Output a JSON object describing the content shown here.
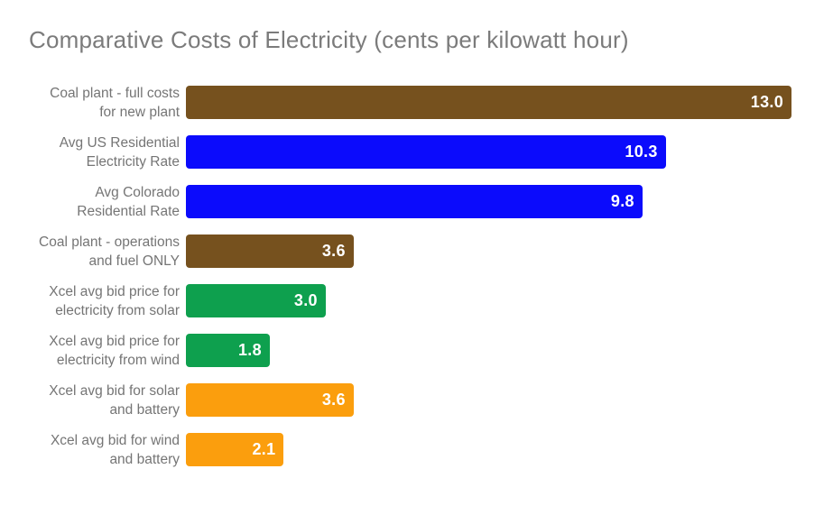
{
  "chart_data": {
    "type": "bar",
    "orientation": "horizontal",
    "title": "Comparative Costs of Electricity (cents per kilowatt hour)",
    "xlabel": "",
    "ylabel": "",
    "xlim": [
      0,
      13.0
    ],
    "grid": false,
    "legend": "none",
    "categories": [
      "Coal plant - full costs for new plant",
      "Avg US Residential Electricity Rate",
      "Avg Colorado Residential Rate",
      "Coal plant - operations and fuel ONLY",
      "Xcel avg bid price for electricity from solar",
      "Xcel avg bid price for electricity from wind",
      "Xcel avg bid for solar and battery",
      "Xcel avg bid for wind and battery"
    ],
    "values": [
      13.0,
      10.3,
      9.8,
      3.6,
      3.0,
      1.8,
      3.6,
      2.1
    ],
    "bars": [
      {
        "label_lines": [
          "Coal plant - full costs",
          "for new plant"
        ],
        "value": 13.0,
        "value_label": "13.0",
        "color": "#76511e"
      },
      {
        "label_lines": [
          "Avg US Residential",
          "Electricity Rate"
        ],
        "value": 10.3,
        "value_label": "10.3",
        "color": "#0b0bfc"
      },
      {
        "label_lines": [
          "Avg Colorado",
          "Residential Rate"
        ],
        "value": 9.8,
        "value_label": "9.8",
        "color": "#0b0bfc"
      },
      {
        "label_lines": [
          "Coal plant - operations",
          "and fuel ONLY"
        ],
        "value": 3.6,
        "value_label": "3.6",
        "color": "#76511e"
      },
      {
        "label_lines": [
          "Xcel avg bid price for",
          "electricity from solar"
        ],
        "value": 3.0,
        "value_label": "3.0",
        "color": "#0ea04e"
      },
      {
        "label_lines": [
          "Xcel avg bid price for",
          "electricity from wind"
        ],
        "value": 1.8,
        "value_label": "1.8",
        "color": "#0ea04e"
      },
      {
        "label_lines": [
          "Xcel avg bid for solar",
          "and battery"
        ],
        "value": 3.6,
        "value_label": "3.6",
        "color": "#fb9e0d"
      },
      {
        "label_lines": [
          "Xcel avg bid for wind",
          "and battery"
        ],
        "value": 2.1,
        "value_label": "2.1",
        "color": "#fb9e0d"
      }
    ],
    "colors": {
      "title_text": "#7b7b7b",
      "label_text": "#757575",
      "value_text": "#ffffff",
      "background": "#ffffff",
      "coal": "#76511e",
      "residential": "#0b0bfc",
      "renewable": "#0ea04e",
      "renewable_battery": "#fb9e0d"
    }
  }
}
